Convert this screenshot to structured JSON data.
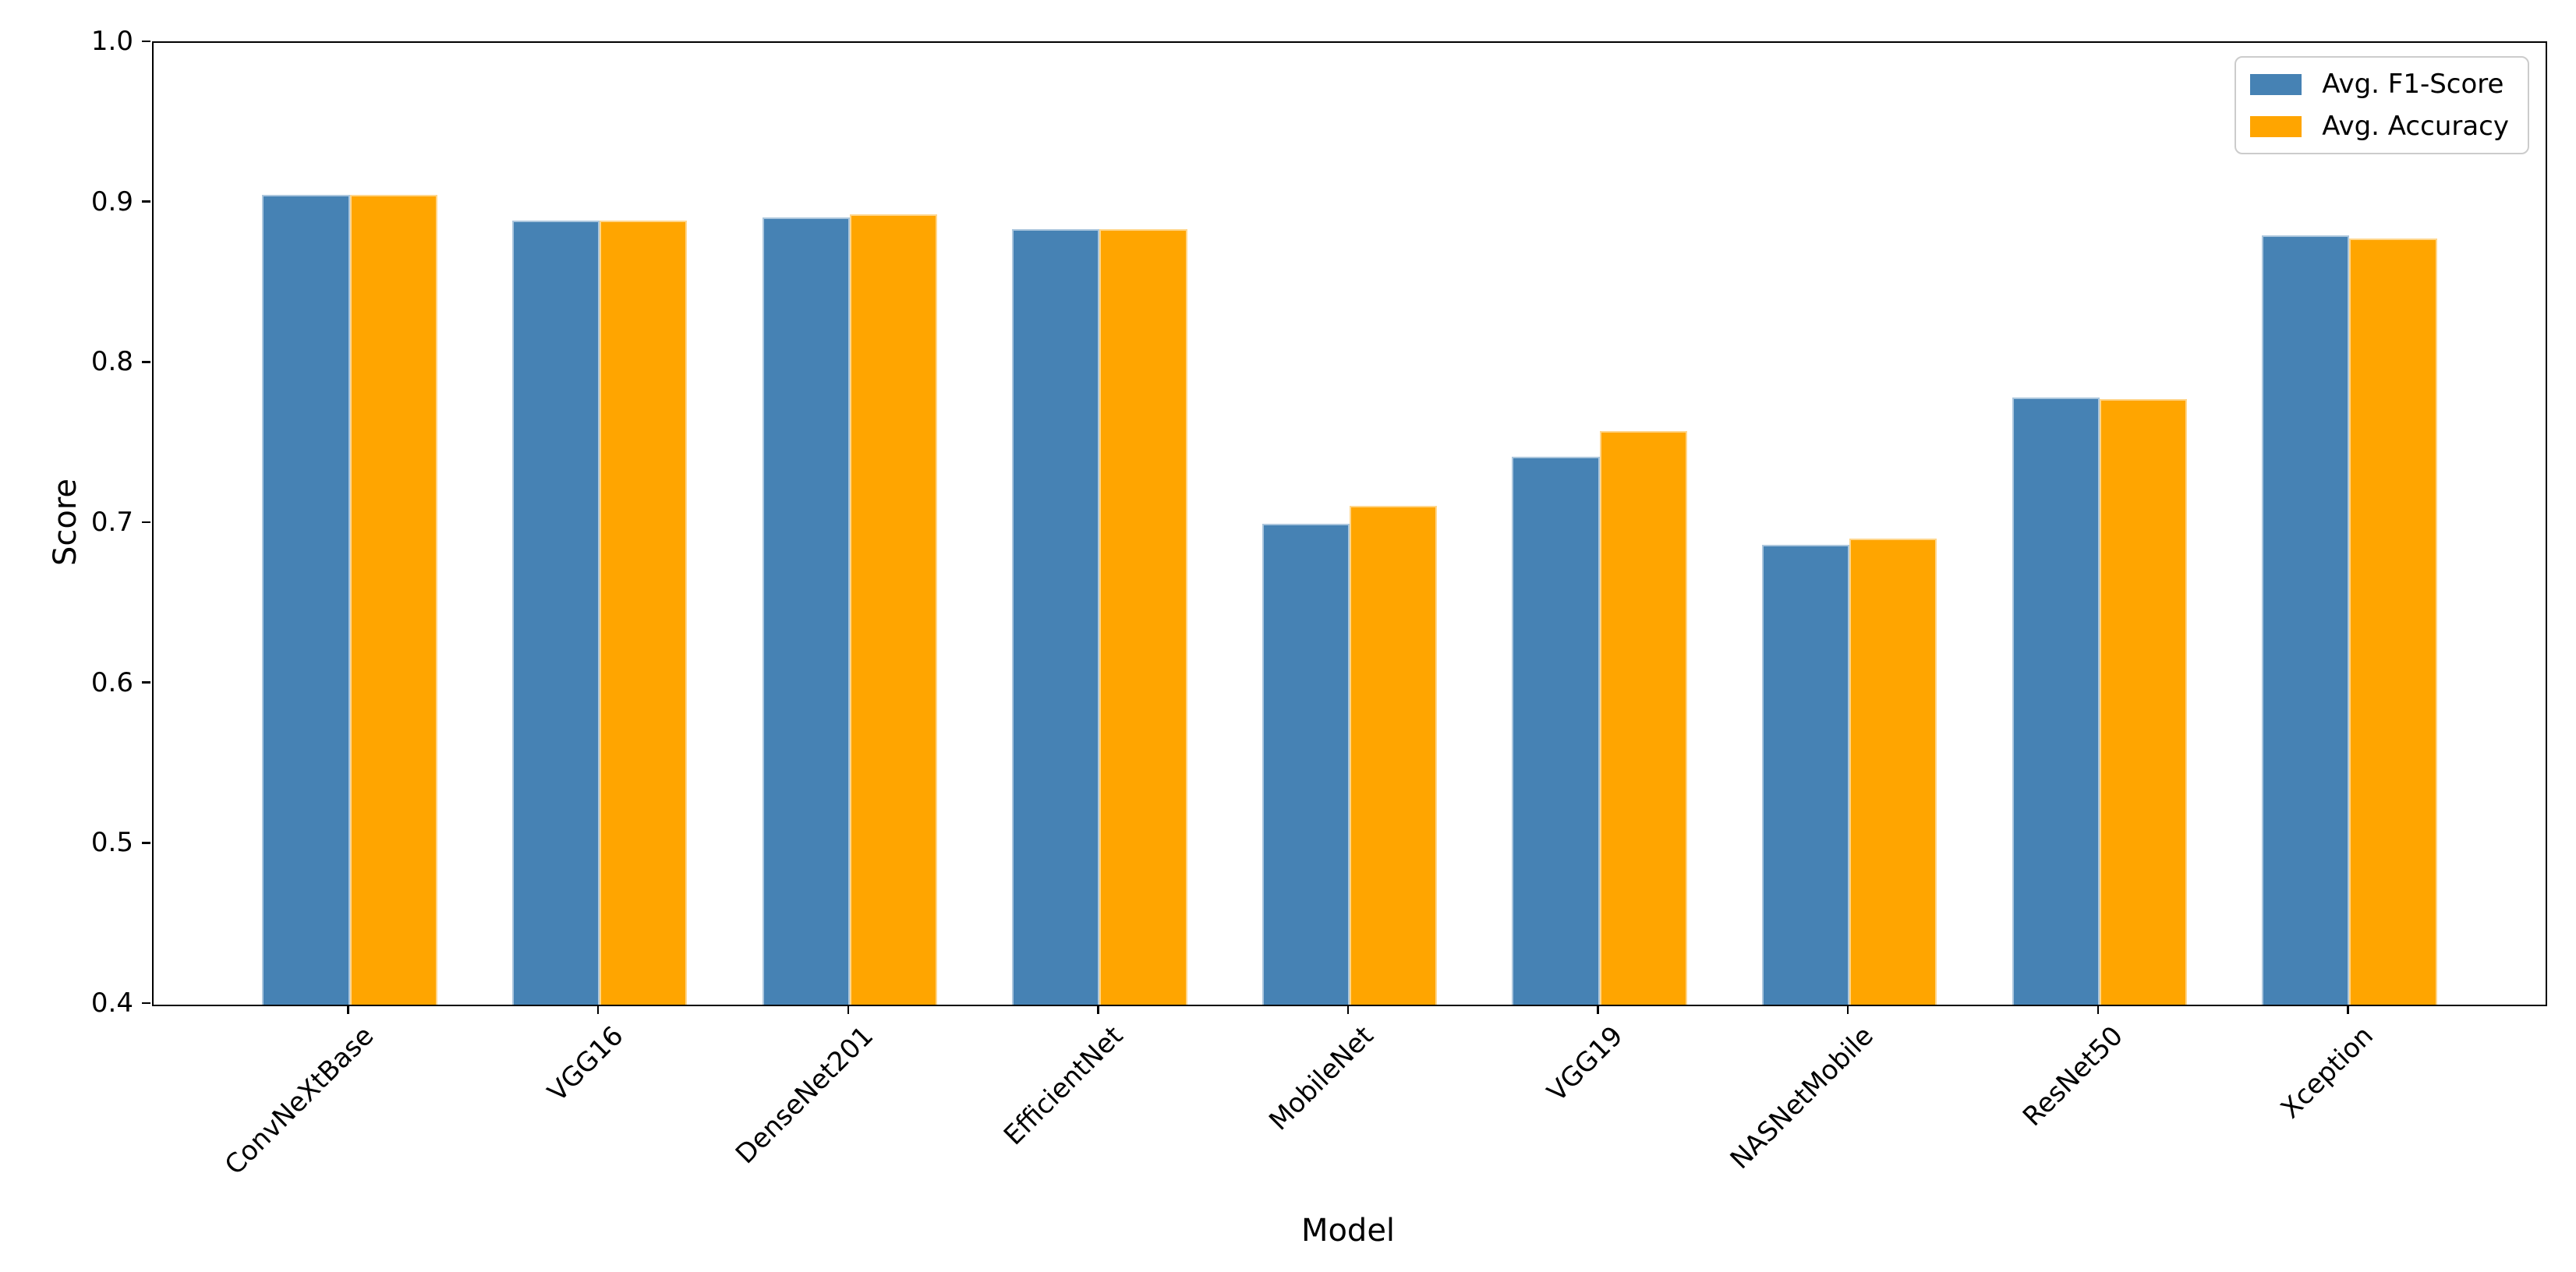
{
  "chart_data": {
    "type": "bar",
    "title": "",
    "xlabel": "Model",
    "ylabel": "Score",
    "categories": [
      "ConvNeXtBase",
      "VGG16",
      "DenseNet201",
      "EfficientNet",
      "MobileNet",
      "VGG19",
      "NASNetMobile",
      "ResNet50",
      "Xception"
    ],
    "series": [
      {
        "name": "Avg. F1-Score",
        "color": "#4682B4",
        "values": [
          0.905,
          0.889,
          0.891,
          0.884,
          0.7,
          0.742,
          0.687,
          0.779,
          0.88
        ]
      },
      {
        "name": "Avg. Accuracy",
        "color": "#FFA500",
        "values": [
          0.905,
          0.889,
          0.893,
          0.884,
          0.711,
          0.758,
          0.691,
          0.778,
          0.878
        ]
      }
    ],
    "ylim": [
      0.4,
      1.0
    ],
    "yticks": [
      0.4,
      0.5,
      0.6,
      0.7,
      0.8,
      0.9,
      1.0
    ],
    "ytick_labels": [
      "0.4",
      "0.5",
      "0.6",
      "0.7",
      "0.8",
      "0.9",
      "1.0"
    ],
    "xtick_rotation_deg": 45,
    "grid": false,
    "legend_position": "upper right",
    "background": "#ffffff",
    "spine_color": "#000000"
  }
}
